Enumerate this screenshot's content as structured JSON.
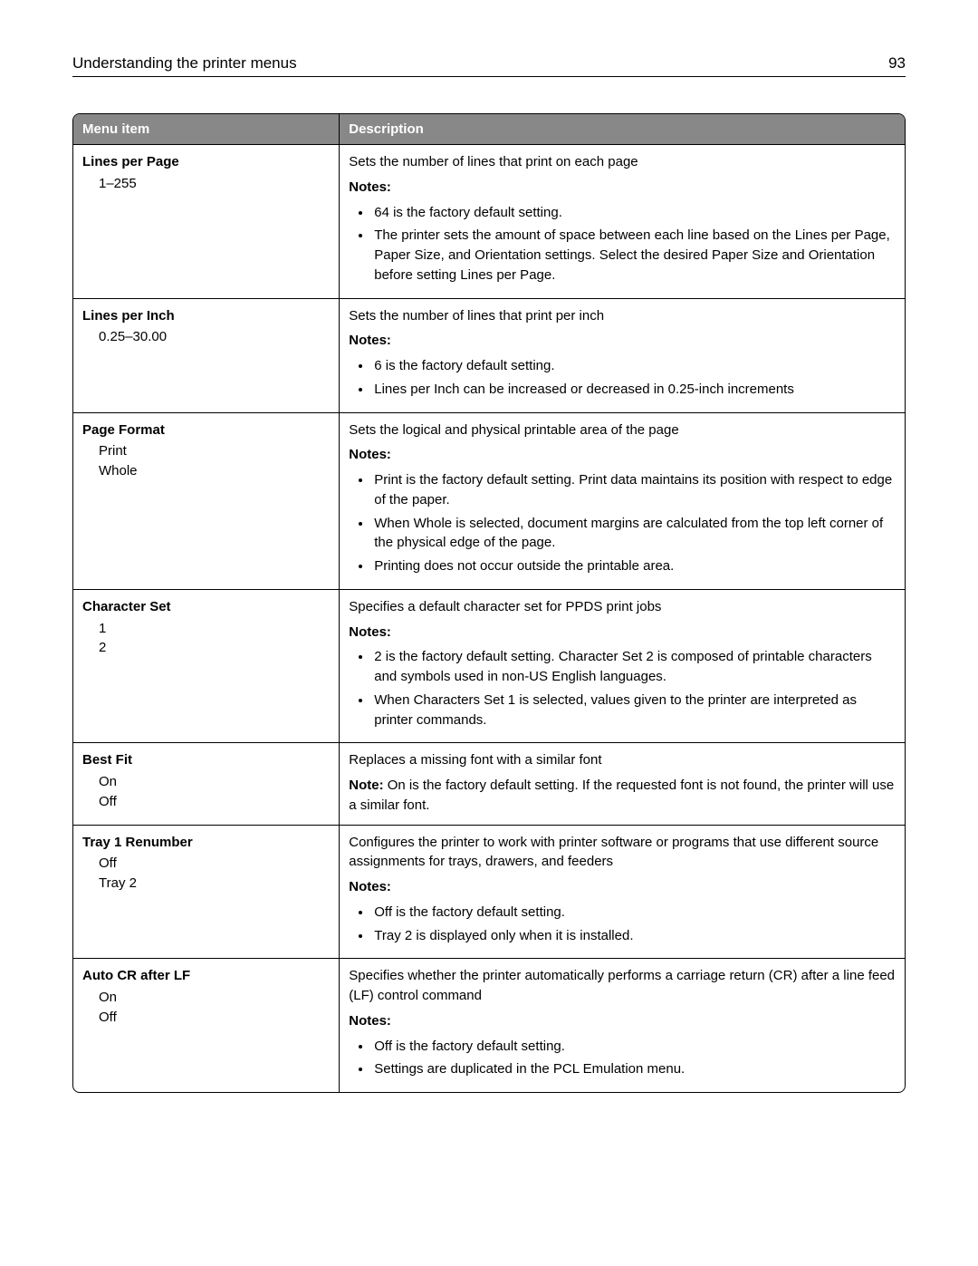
{
  "header": {
    "title": "Understanding the printer menus",
    "page_number": "93"
  },
  "table": {
    "col1": "Menu item",
    "col2": "Description"
  },
  "rows": [
    {
      "name": "Lines per Page",
      "options": [
        "1–255"
      ],
      "intro": "Sets the number of lines that print on each page",
      "notes_label": "Notes:",
      "notes": [
        "64 is the factory default setting.",
        "The printer sets the amount of space between each line based on the Lines per Page, Paper Size, and Orientation settings. Select the desired Paper Size and Orientation before setting Lines per Page."
      ]
    },
    {
      "name": "Lines per Inch",
      "options": [
        "0.25–30.00"
      ],
      "intro": "Sets the number of lines that print per inch",
      "notes_label": "Notes:",
      "notes": [
        "6 is the factory default setting.",
        "Lines per Inch can be increased or decreased in 0.25-inch increments"
      ]
    },
    {
      "name": "Page Format",
      "options": [
        "Print",
        "Whole"
      ],
      "intro": "Sets the logical and physical printable area of the page",
      "notes_label": "Notes:",
      "notes": [
        "Print is the factory default setting. Print data maintains its position with respect to edge of the paper.",
        "When Whole is selected, document margins are calculated from the top left corner of the physical edge of the page.",
        "Printing does not occur outside the printable area."
      ]
    },
    {
      "name": "Character Set",
      "options": [
        "1",
        "2"
      ],
      "intro": "Specifies a default character set for PPDS print jobs",
      "notes_label": "Notes:",
      "notes": [
        "2 is the factory default setting. Character Set 2 is composed of printable characters and symbols used in non-US English languages.",
        "When Characters Set 1 is selected, values given to the printer are interpreted as printer commands."
      ]
    },
    {
      "name": "Best Fit",
      "options": [
        "On",
        "Off"
      ],
      "intro": "Replaces a missing font with a similar font",
      "note_inline_prefix": "Note:",
      "note_inline_text": " On is the factory default setting. If the requested font is not found, the printer will use a similar font."
    },
    {
      "name": "Tray 1 Renumber",
      "options": [
        "Off",
        "Tray 2"
      ],
      "intro": "Configures the printer to work with printer software or programs that use different source assignments for trays, drawers, and feeders",
      "notes_label": "Notes:",
      "notes": [
        "Off is the factory default setting.",
        "Tray 2 is displayed only when it is installed."
      ]
    },
    {
      "name": "Auto CR after LF",
      "options": [
        "On",
        "Off"
      ],
      "intro": "Specifies whether the printer automatically performs a carriage return (CR) after a line feed (LF) control command",
      "notes_label": "Notes:",
      "notes": [
        "Off is the factory default setting.",
        "Settings are duplicated in the PCL Emulation menu."
      ]
    }
  ]
}
